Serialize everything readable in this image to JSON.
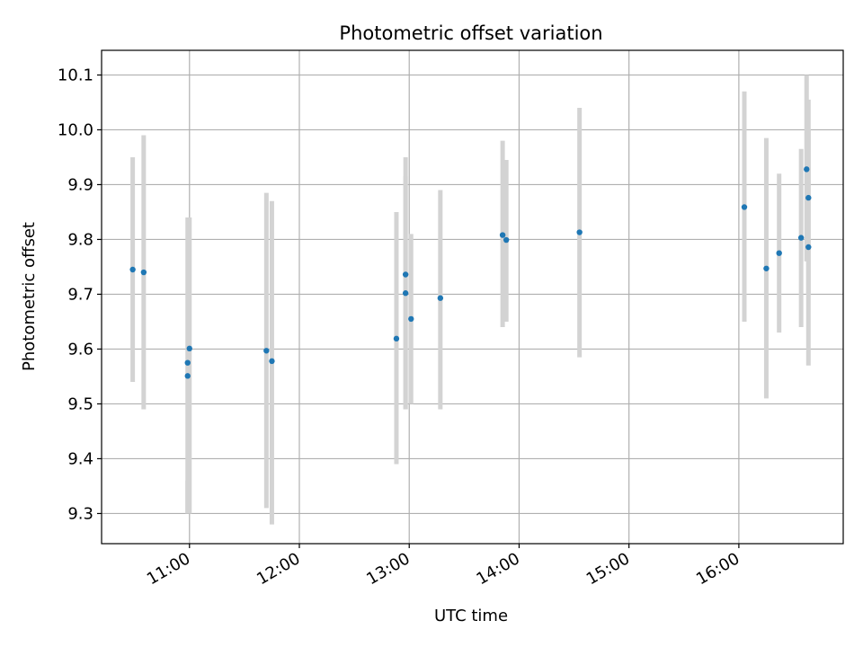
{
  "chart_data": {
    "type": "scatter",
    "title": "Photometric offset variation",
    "xlabel": "UTC time",
    "ylabel": "Photometric offset",
    "x_ticks": [
      "11:00",
      "12:00",
      "13:00",
      "14:00",
      "15:00",
      "16:00"
    ],
    "y_ticks": [
      "9.3",
      "9.4",
      "9.5",
      "9.6",
      "9.7",
      "9.8",
      "9.9",
      "10.0",
      "10.1"
    ],
    "xlim": [
      "10:12",
      "16:57"
    ],
    "ylim": [
      9.245,
      10.145
    ],
    "grid": true,
    "colors": {
      "points": "#1f77b4",
      "errorbars": "#d3d3d3",
      "grid": "#b0b0b0"
    },
    "series": [
      {
        "points": [
          {
            "x": "10:29",
            "y": 9.745,
            "low": 9.54,
            "high": 9.95
          },
          {
            "x": "10:35",
            "y": 9.74,
            "low": 9.49,
            "high": 9.99
          },
          {
            "x": "10:59",
            "y": 9.551,
            "low": 9.3,
            "high": 9.84
          },
          {
            "x": "10:59",
            "y": 9.575,
            "low": 9.3,
            "high": 9.36
          },
          {
            "x": "11:00",
            "y": 9.601,
            "low": 9.3,
            "high": 9.84
          },
          {
            "x": "11:42",
            "y": 9.597,
            "low": 9.31,
            "high": 9.885
          },
          {
            "x": "11:45",
            "y": 9.578,
            "low": 9.28,
            "high": 9.87
          },
          {
            "x": "12:53",
            "y": 9.619,
            "low": 9.39,
            "high": 9.85
          },
          {
            "x": "12:58",
            "y": 9.736,
            "low": 9.49,
            "high": 9.95
          },
          {
            "x": "12:58",
            "y": 9.702,
            "low": 9.49,
            "high": 9.915
          },
          {
            "x": "13:01",
            "y": 9.655,
            "low": 9.5,
            "high": 9.81
          },
          {
            "x": "13:17",
            "y": 9.693,
            "low": 9.49,
            "high": 9.89
          },
          {
            "x": "13:51",
            "y": 9.808,
            "low": 9.64,
            "high": 9.98
          },
          {
            "x": "13:53",
            "y": 9.799,
            "low": 9.65,
            "high": 9.945
          },
          {
            "x": "14:33",
            "y": 9.813,
            "low": 9.585,
            "high": 10.04
          },
          {
            "x": "16:03",
            "y": 9.859,
            "low": 9.65,
            "high": 10.07
          },
          {
            "x": "16:15",
            "y": 9.747,
            "low": 9.51,
            "high": 9.985
          },
          {
            "x": "16:22",
            "y": 9.775,
            "low": 9.63,
            "high": 9.92
          },
          {
            "x": "16:34",
            "y": 9.803,
            "low": 9.64,
            "high": 9.965
          },
          {
            "x": "16:37",
            "y": 9.928,
            "low": 9.76,
            "high": 10.1
          },
          {
            "x": "16:38",
            "y": 9.876,
            "low": 9.7,
            "high": 10.055
          },
          {
            "x": "16:38",
            "y": 9.786,
            "low": 9.57,
            "high": 10.0
          }
        ]
      }
    ]
  }
}
